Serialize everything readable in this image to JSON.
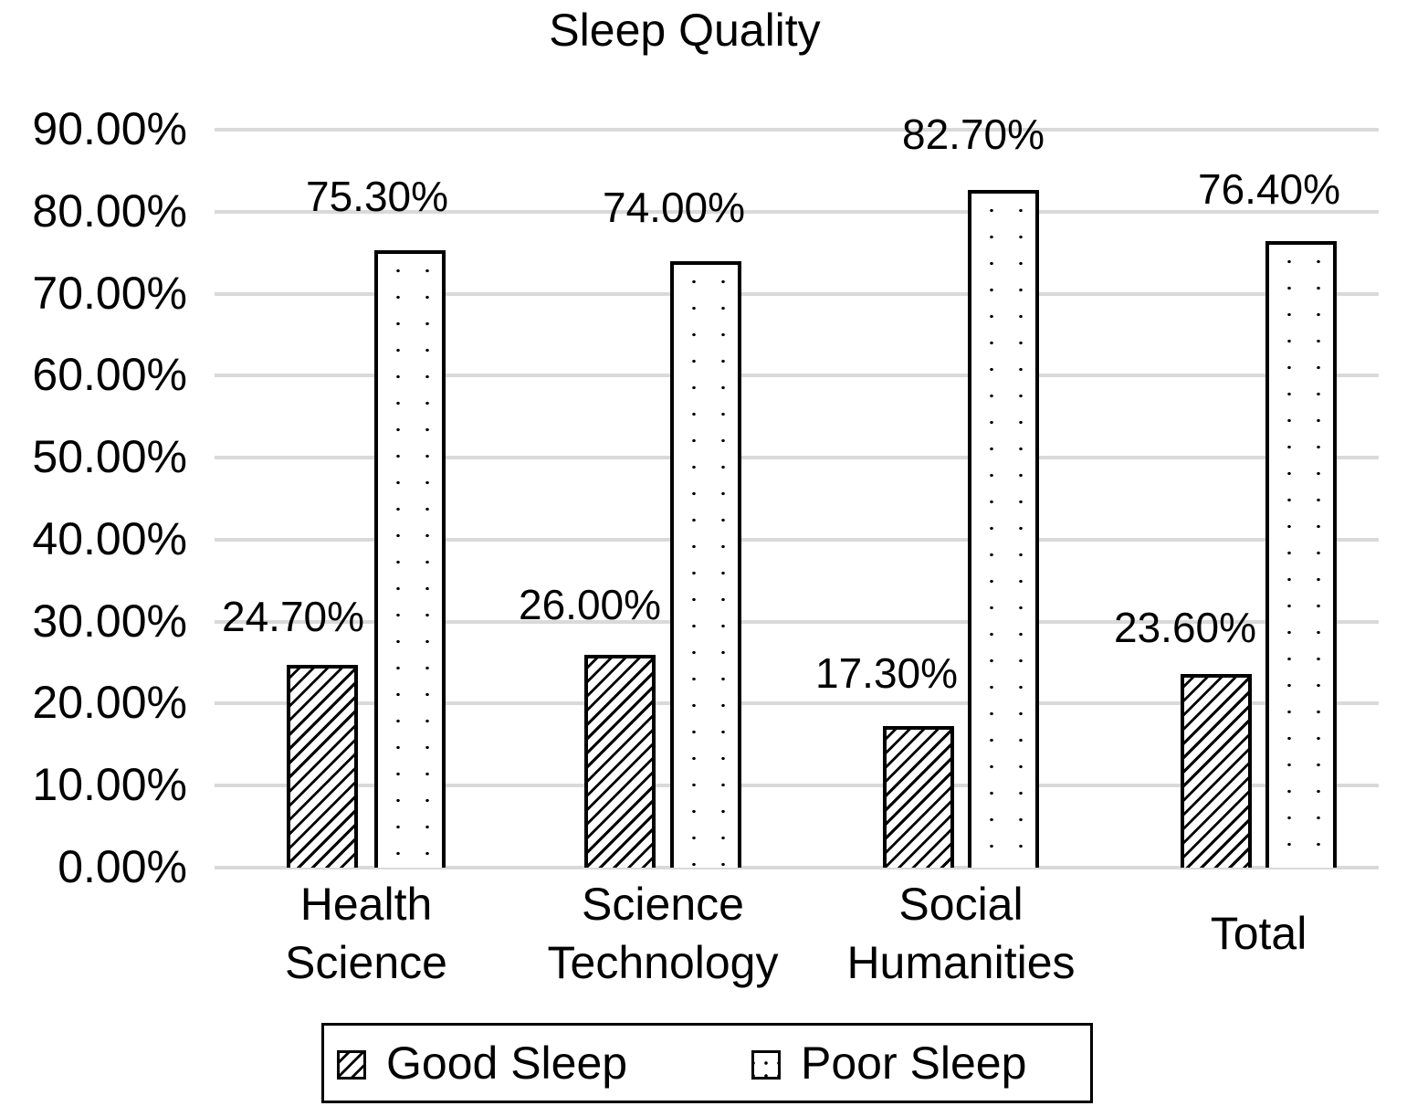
{
  "chart_data": {
    "type": "bar",
    "title": "Sleep Quality",
    "xlabel": "",
    "ylabel": "",
    "categories": [
      "Health Science",
      "Science Technology",
      "Social Humanities",
      "Total"
    ],
    "series": [
      {
        "name": "Good Sleep",
        "values": [
          24.7,
          26.0,
          17.3,
          23.6
        ],
        "labels": [
          "24.70%",
          "26.00%",
          "17.30%",
          "23.60%"
        ]
      },
      {
        "name": "Poor Sleep",
        "values": [
          75.3,
          74.0,
          82.7,
          76.4
        ],
        "labels": [
          "75.30%",
          "74.00%",
          "82.70%",
          "76.40%"
        ]
      }
    ],
    "ylim": [
      0,
      90
    ],
    "yticks": [
      "0.00%",
      "10.00%",
      "20.00%",
      "30.00%",
      "40.00%",
      "50.00%",
      "60.00%",
      "70.00%",
      "80.00%",
      "90.00%"
    ],
    "grid": true,
    "legend_position": "bottom"
  },
  "categories_display": [
    [
      "Health",
      "Science"
    ],
    [
      "Science",
      "Technology"
    ],
    [
      "Social",
      "Humanities"
    ],
    [
      "Total"
    ]
  ]
}
